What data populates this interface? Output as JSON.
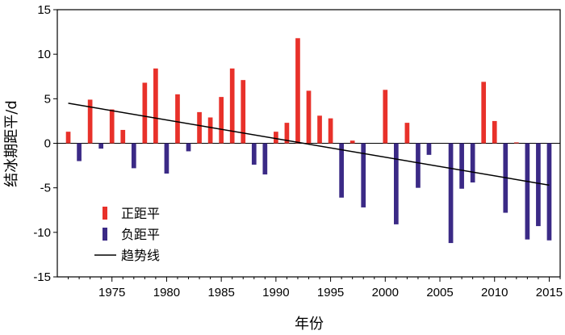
{
  "chart_data": {
    "type": "bar",
    "xlabel": "年份",
    "ylabel": "结冰期距平/d",
    "xlim": [
      1970,
      2016
    ],
    "ylim": [
      -15,
      15
    ],
    "yticks": [
      -15,
      -10,
      -5,
      0,
      5,
      10,
      15
    ],
    "xticks": [
      1975,
      1980,
      1985,
      1990,
      1995,
      2000,
      2005,
      2010,
      2015
    ],
    "grid": false,
    "legend": "bottom-left",
    "colors": {
      "positive": "#e8312a",
      "negative": "#3b2a86",
      "trend": "#000000"
    },
    "series": [
      {
        "name": "正距平",
        "points": [
          [
            1971,
            1.3
          ],
          [
            1973,
            4.9
          ],
          [
            1975,
            3.8
          ],
          [
            1976,
            1.5
          ],
          [
            1978,
            6.8
          ],
          [
            1979,
            8.4
          ],
          [
            1981,
            5.5
          ],
          [
            1983,
            3.5
          ],
          [
            1984,
            2.9
          ],
          [
            1985,
            5.2
          ],
          [
            1986,
            8.4
          ],
          [
            1987,
            7.1
          ],
          [
            1990,
            1.3
          ],
          [
            1991,
            2.3
          ],
          [
            1992,
            11.8
          ],
          [
            1993,
            5.9
          ],
          [
            1994,
            3.1
          ],
          [
            1995,
            2.8
          ],
          [
            1997,
            0.3
          ],
          [
            2000,
            6.0
          ],
          [
            2002,
            2.3
          ],
          [
            2009,
            6.9
          ],
          [
            2010,
            2.5
          ],
          [
            2012,
            0.1
          ]
        ]
      },
      {
        "name": "负距平",
        "points": [
          [
            1972,
            -2.0
          ],
          [
            1974,
            -0.6
          ],
          [
            1977,
            -2.8
          ],
          [
            1980,
            -3.4
          ],
          [
            1982,
            -0.9
          ],
          [
            1988,
            -2.4
          ],
          [
            1989,
            -3.5
          ],
          [
            1996,
            -6.1
          ],
          [
            1998,
            -7.2
          ],
          [
            2001,
            -9.1
          ],
          [
            2003,
            -5.0
          ],
          [
            2004,
            -1.3
          ],
          [
            2006,
            -11.2
          ],
          [
            2007,
            -5.1
          ],
          [
            2008,
            -4.4
          ],
          [
            2011,
            -7.8
          ],
          [
            2013,
            -10.8
          ],
          [
            2014,
            -9.3
          ],
          [
            2015,
            -10.9
          ]
        ]
      },
      {
        "name": "趋势线",
        "type": "line",
        "points": [
          [
            1971,
            4.5
          ],
          [
            2015,
            -4.7
          ]
        ]
      }
    ]
  }
}
